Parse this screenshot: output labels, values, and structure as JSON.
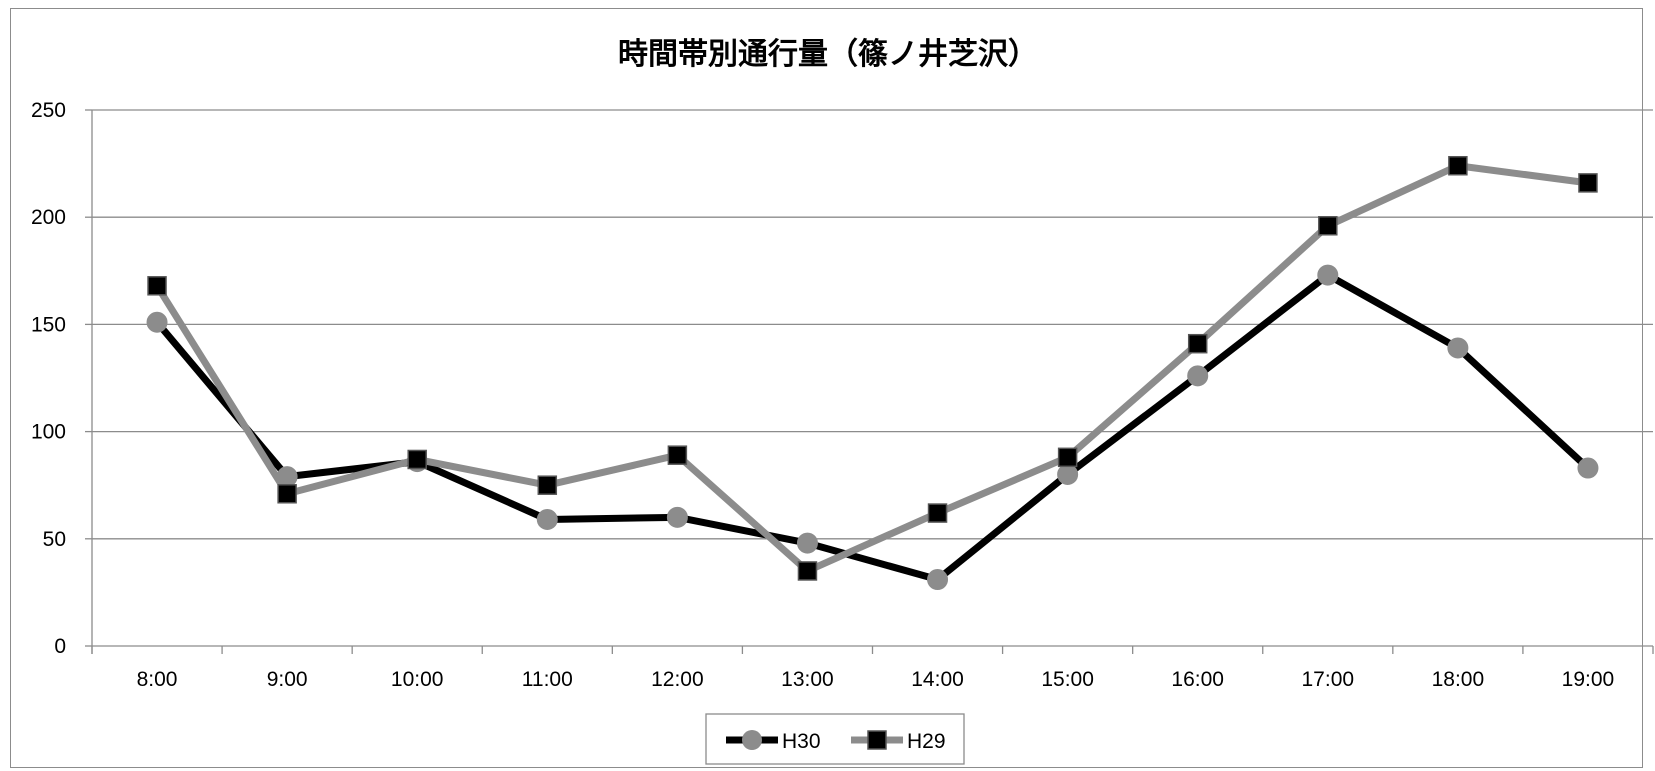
{
  "chart_data": {
    "type": "line",
    "title": "時間帯別通行量（篠ノ井芝沢）",
    "xlabel": "",
    "ylabel": "",
    "categories": [
      "8:00",
      "9:00",
      "10:00",
      "11:00",
      "12:00",
      "13:00",
      "14:00",
      "15:00",
      "16:00",
      "17:00",
      "18:00",
      "19:00"
    ],
    "ylim": [
      0,
      250
    ],
    "yticks": [
      0,
      50,
      100,
      150,
      200,
      250
    ],
    "grid": true,
    "legend_position": "bottom",
    "series": [
      {
        "name": "H30",
        "line_color": "#000000",
        "marker": "circle",
        "marker_color": "#8c8c8c",
        "values": [
          151,
          79,
          86,
          59,
          60,
          48,
          31,
          80,
          126,
          173,
          139,
          83
        ]
      },
      {
        "name": "H29",
        "line_color": "#8c8c8c",
        "marker": "square",
        "marker_color": "#000000",
        "values": [
          168,
          71,
          87,
          75,
          89,
          35,
          62,
          88,
          141,
          196,
          224,
          216
        ]
      }
    ]
  }
}
